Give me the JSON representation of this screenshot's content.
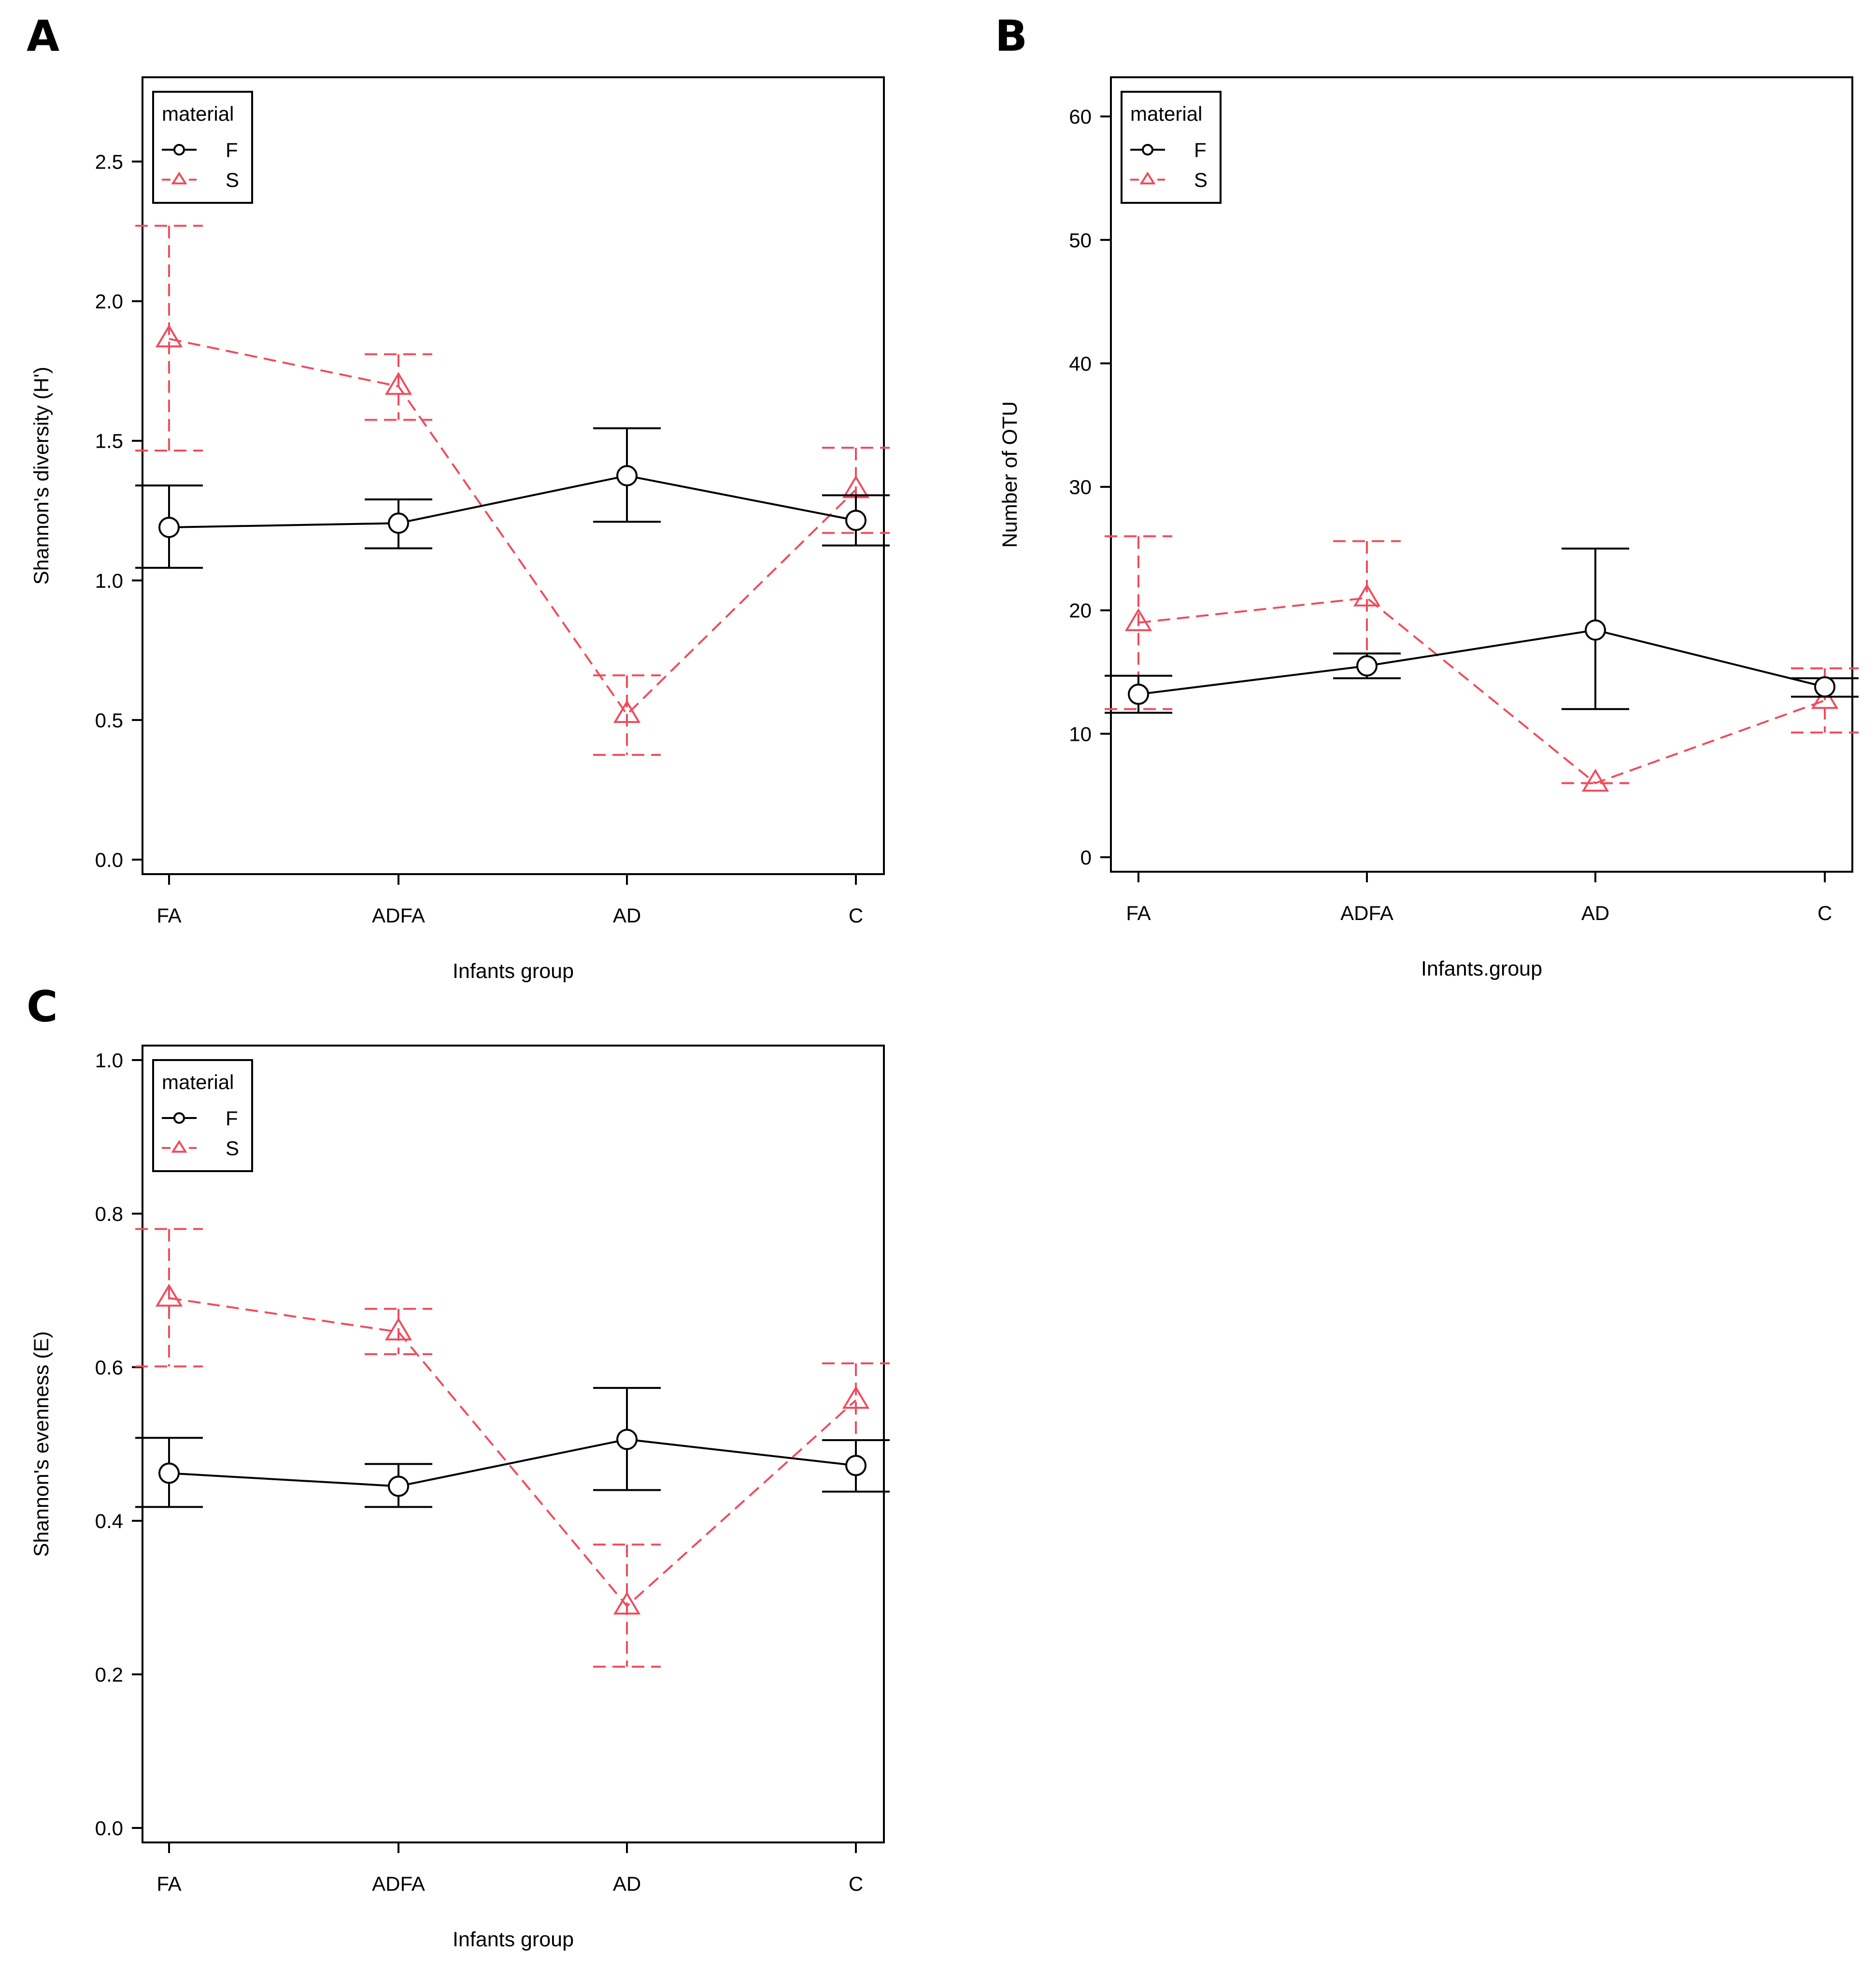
{
  "figure": {
    "panel_letters": [
      "A",
      "B",
      "C"
    ]
  },
  "colors": {
    "F": "#000000",
    "S": "#f04b5c"
  },
  "chart_data": [
    {
      "panel": "A",
      "type": "line",
      "xlabel": "Infants group",
      "ylabel": "Shannon's diversity (H')",
      "categories": [
        "FA",
        "ADFA",
        "AD",
        "C"
      ],
      "ylim": [
        0,
        2.75
      ],
      "yticks": [
        0.0,
        0.5,
        1.0,
        1.5,
        2.0,
        2.5
      ],
      "ytick_labels": [
        "0.0",
        "0.5",
        "1.0",
        "1.5",
        "2.0",
        "2.5"
      ],
      "legend": {
        "title": "material",
        "placement": "top-left",
        "entries": [
          "F",
          "S"
        ]
      },
      "series": [
        {
          "name": "F",
          "marker": "circle",
          "line": "solid",
          "values": [
            1.19,
            1.205,
            1.375,
            1.215
          ],
          "lower": [
            1.045,
            1.115,
            1.21,
            1.125
          ],
          "upper": [
            1.34,
            1.29,
            1.545,
            1.305
          ]
        },
        {
          "name": "S",
          "marker": "triangle",
          "line": "dashed",
          "values": [
            1.865,
            1.695,
            0.52,
            1.325
          ],
          "lower": [
            1.465,
            1.575,
            0.375,
            1.17
          ],
          "upper": [
            2.27,
            1.81,
            0.66,
            1.475
          ]
        }
      ]
    },
    {
      "panel": "B",
      "type": "line",
      "xlabel": "Infants.group",
      "ylabel": "Number of OTU",
      "categories": [
        "FA",
        "ADFA",
        "AD",
        "C"
      ],
      "ylim": [
        0,
        62
      ],
      "yticks": [
        0,
        10,
        20,
        30,
        40,
        50,
        60
      ],
      "ytick_labels": [
        "0",
        "10",
        "20",
        "30",
        "40",
        "50",
        "60"
      ],
      "legend": {
        "title": "material",
        "placement": "top-left",
        "entries": [
          "F",
          "S"
        ]
      },
      "series": [
        {
          "name": "F",
          "marker": "circle",
          "line": "solid",
          "values": [
            13.2,
            15.5,
            18.4,
            13.8
          ],
          "lower": [
            11.7,
            14.5,
            12.0,
            13.0
          ],
          "upper": [
            14.7,
            16.5,
            25.0,
            14.5
          ]
        },
        {
          "name": "S",
          "marker": "triangle",
          "line": "dashed",
          "values": [
            19.0,
            21.0,
            6.0,
            12.7
          ],
          "lower": [
            12.0,
            16.5,
            6.0,
            10.1
          ],
          "upper": [
            26.0,
            25.6,
            6.0,
            15.3
          ]
        }
      ]
    },
    {
      "panel": "C",
      "type": "line",
      "xlabel": "Infants group",
      "ylabel": "Shannon's evenness (E)",
      "categories": [
        "FA",
        "ADFA",
        "AD",
        "C"
      ],
      "ylim": [
        0,
        1.0
      ],
      "yticks": [
        0.0,
        0.2,
        0.4,
        0.6,
        0.8,
        1.0
      ],
      "ytick_labels": [
        "0.0",
        "0.2",
        "0.4",
        "0.6",
        "0.8",
        "1.0"
      ],
      "legend": {
        "title": "material",
        "placement": "top-left",
        "entries": [
          "F",
          "S"
        ]
      },
      "series": [
        {
          "name": "F",
          "marker": "circle",
          "line": "solid",
          "values": [
            0.462,
            0.445,
            0.506,
            0.472
          ],
          "lower": [
            0.418,
            0.418,
            0.44,
            0.438
          ],
          "upper": [
            0.508,
            0.474,
            0.573,
            0.505
          ]
        },
        {
          "name": "S",
          "marker": "triangle",
          "line": "dashed",
          "values": [
            0.69,
            0.646,
            0.289,
            0.557
          ],
          "lower": [
            0.601,
            0.617,
            0.21,
            0.505
          ],
          "upper": [
            0.78,
            0.676,
            0.369,
            0.605
          ]
        }
      ]
    }
  ]
}
